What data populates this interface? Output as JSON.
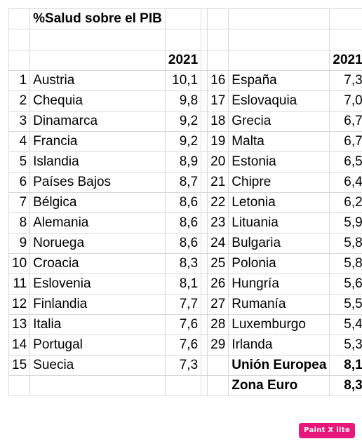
{
  "title": "%Salud sobre el PIB",
  "year_label_left": "2021",
  "year_label_right": "2021",
  "left_rows": [
    {
      "rank": "1",
      "country": "Austria",
      "value": "10,1"
    },
    {
      "rank": "2",
      "country": "Chequia",
      "value": "9,8"
    },
    {
      "rank": "3",
      "country": "Dinamarca",
      "value": "9,2"
    },
    {
      "rank": "4",
      "country": "Francia",
      "value": "9,2"
    },
    {
      "rank": "5",
      "country": "Islandia",
      "value": "8,9"
    },
    {
      "rank": "6",
      "country": "Países Bajos",
      "value": "8,7"
    },
    {
      "rank": "7",
      "country": "Bélgica",
      "value": "8,6"
    },
    {
      "rank": "8",
      "country": "Alemania",
      "value": "8,6"
    },
    {
      "rank": "9",
      "country": "Noruega",
      "value": "8,6"
    },
    {
      "rank": "10",
      "country": "Croacia",
      "value": "8,3"
    },
    {
      "rank": "11",
      "country": "Eslovenia",
      "value": "8,1"
    },
    {
      "rank": "12",
      "country": "Finlandia",
      "value": "7,7"
    },
    {
      "rank": "13",
      "country": "Italia",
      "value": "7,6"
    },
    {
      "rank": "14",
      "country": "Portugal",
      "value": "7,6"
    },
    {
      "rank": "15",
      "country": "Suecia",
      "value": "7,3"
    }
  ],
  "right_rows": [
    {
      "rank": "16",
      "country": "España",
      "value": "7,3"
    },
    {
      "rank": "17",
      "country": "Eslovaquia",
      "value": "7,0"
    },
    {
      "rank": "18",
      "country": "Grecia",
      "value": "6,7"
    },
    {
      "rank": "19",
      "country": "Malta",
      "value": "6,7"
    },
    {
      "rank": "20",
      "country": "Estonia",
      "value": "6,5"
    },
    {
      "rank": "21",
      "country": "Chipre",
      "value": "6,4"
    },
    {
      "rank": "22",
      "country": "Letonia",
      "value": "6,2"
    },
    {
      "rank": "23",
      "country": "Lituania",
      "value": "5,9"
    },
    {
      "rank": "24",
      "country": "Bulgaria",
      "value": "5,8"
    },
    {
      "rank": "25",
      "country": "Polonia",
      "value": "5,8"
    },
    {
      "rank": "26",
      "country": "Hungría",
      "value": "5,6"
    },
    {
      "rank": "27",
      "country": "Rumanía",
      "value": "5,5"
    },
    {
      "rank": "28",
      "country": "Luxemburgo",
      "value": "5,4"
    },
    {
      "rank": "29",
      "country": "Irlanda",
      "value": "5,3"
    },
    {
      "rank": "",
      "country": "Unión Europea",
      "value": "8,1",
      "bold": true
    }
  ],
  "extra_row": {
    "country": "Zona Euro",
    "value": "8,3"
  },
  "watermark": "Paint X lite"
}
